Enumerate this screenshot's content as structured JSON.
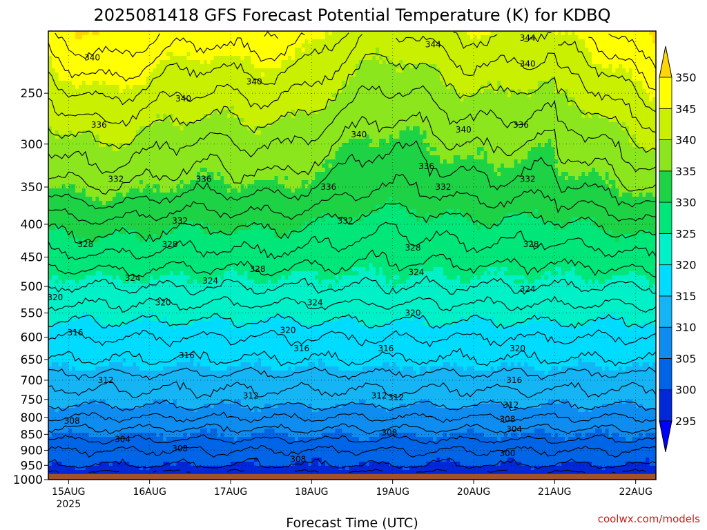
{
  "chart_data": {
    "type": "heatmap",
    "title": "2025081418 GFS Forecast Potential Temperature (K) for KDBQ",
    "xlabel": "Forecast Time (UTC)",
    "ylabel": "",
    "credit": "coolwx.com/models",
    "x_ticks": [
      {
        "day": "15AUG",
        "year": "2025",
        "hour_offset": 6
      },
      {
        "day": "16AUG",
        "year": "",
        "hour_offset": 30
      },
      {
        "day": "17AUG",
        "year": "",
        "hour_offset": 54
      },
      {
        "day": "18AUG",
        "year": "",
        "hour_offset": 78
      },
      {
        "day": "19AUG",
        "year": "",
        "hour_offset": 102
      },
      {
        "day": "20AUG",
        "year": "",
        "hour_offset": 126
      },
      {
        "day": "21AUG",
        "year": "",
        "hour_offset": 150
      },
      {
        "day": "22AUG",
        "year": "",
        "hour_offset": 174
      }
    ],
    "xlim_hours": [
      0,
      180
    ],
    "y_ticks": [
      250,
      300,
      350,
      400,
      450,
      500,
      550,
      600,
      650,
      700,
      750,
      800,
      850,
      900,
      950,
      1000
    ],
    "ylim_hPa": [
      200,
      1000
    ],
    "y_scale": "log-pressure",
    "grid": "dotted",
    "colorbar": {
      "levels": [
        295,
        300,
        305,
        310,
        315,
        320,
        325,
        330,
        335,
        340,
        345,
        350
      ],
      "colors": [
        "#0000ff",
        "#0028d8",
        "#0064e6",
        "#0f8cef",
        "#14b4f5",
        "#00dcff",
        "#00f0c8",
        "#00e678",
        "#1ed246",
        "#8ce61e",
        "#c8f000",
        "#ffff00",
        "#ffd700"
      ],
      "placement": "right"
    },
    "contour_interval": 4,
    "profile_levels_hPa": [
      200,
      250,
      300,
      350,
      400,
      450,
      500,
      550,
      600,
      650,
      700,
      750,
      800,
      850,
      900,
      950,
      975
    ],
    "profile_theta_K": [
      346,
      341,
      337,
      334,
      330,
      327,
      324,
      321,
      318,
      316,
      313,
      311,
      308,
      305,
      302,
      300,
      298
    ],
    "contour_labels": [
      {
        "value": "340",
        "hour": 13,
        "p": 220
      },
      {
        "value": "336",
        "hour": 15,
        "p": 280
      },
      {
        "value": "332",
        "hour": 20,
        "p": 340
      },
      {
        "value": "328",
        "hour": 11,
        "p": 430
      },
      {
        "value": "324",
        "hour": 25,
        "p": 485
      },
      {
        "value": "320",
        "hour": 2,
        "p": 520
      },
      {
        "value": "316",
        "hour": 8,
        "p": 590
      },
      {
        "value": "312",
        "hour": 17,
        "p": 700
      },
      {
        "value": "308",
        "hour": 7,
        "p": 810
      },
      {
        "value": "304",
        "hour": 22,
        "p": 865
      },
      {
        "value": "340",
        "hour": 40,
        "p": 255
      },
      {
        "value": "336",
        "hour": 46,
        "p": 340
      },
      {
        "value": "332",
        "hour": 39,
        "p": 395
      },
      {
        "value": "328",
        "hour": 36,
        "p": 430
      },
      {
        "value": "324",
        "hour": 48,
        "p": 490
      },
      {
        "value": "320",
        "hour": 34,
        "p": 530
      },
      {
        "value": "316",
        "hour": 41,
        "p": 640
      },
      {
        "value": "308",
        "hour": 39,
        "p": 895
      },
      {
        "value": "340",
        "hour": 61,
        "p": 240
      },
      {
        "value": "328",
        "hour": 62,
        "p": 470
      },
      {
        "value": "312",
        "hour": 60,
        "p": 740
      },
      {
        "value": "320",
        "hour": 71,
        "p": 585
      },
      {
        "value": "316",
        "hour": 75,
        "p": 625
      },
      {
        "value": "324",
        "hour": 79,
        "p": 530
      },
      {
        "value": "308",
        "hour": 74,
        "p": 930
      },
      {
        "value": "336",
        "hour": 83,
        "p": 350
      },
      {
        "value": "332",
        "hour": 88,
        "p": 395
      },
      {
        "value": "340",
        "hour": 92,
        "p": 290
      },
      {
        "value": "316",
        "hour": 100,
        "p": 625
      },
      {
        "value": "312",
        "hour": 98,
        "p": 740
      },
      {
        "value": "308",
        "hour": 101,
        "p": 845
      },
      {
        "value": "344",
        "hour": 114,
        "p": 210
      },
      {
        "value": "336",
        "hour": 112,
        "p": 325
      },
      {
        "value": "328",
        "hour": 108,
        "p": 435
      },
      {
        "value": "332",
        "hour": 117,
        "p": 350
      },
      {
        "value": "324",
        "hour": 109,
        "p": 475
      },
      {
        "value": "320",
        "hour": 108,
        "p": 550
      },
      {
        "value": "312",
        "hour": 103,
        "p": 745
      },
      {
        "value": "340",
        "hour": 123,
        "p": 285
      },
      {
        "value": "336",
        "hour": 140,
        "p": 280
      },
      {
        "value": "344",
        "hour": 142,
        "p": 205
      },
      {
        "value": "340",
        "hour": 142,
        "p": 225
      },
      {
        "value": "332",
        "hour": 142,
        "p": 340
      },
      {
        "value": "328",
        "hour": 143,
        "p": 430
      },
      {
        "value": "324",
        "hour": 142,
        "p": 505
      },
      {
        "value": "320",
        "hour": 139,
        "p": 625
      },
      {
        "value": "316",
        "hour": 138,
        "p": 700
      },
      {
        "value": "312",
        "hour": 137,
        "p": 765
      },
      {
        "value": "308",
        "hour": 136,
        "p": 805
      },
      {
        "value": "304",
        "hour": 138,
        "p": 835
      },
      {
        "value": "300",
        "hour": 136,
        "p": 910
      }
    ]
  }
}
